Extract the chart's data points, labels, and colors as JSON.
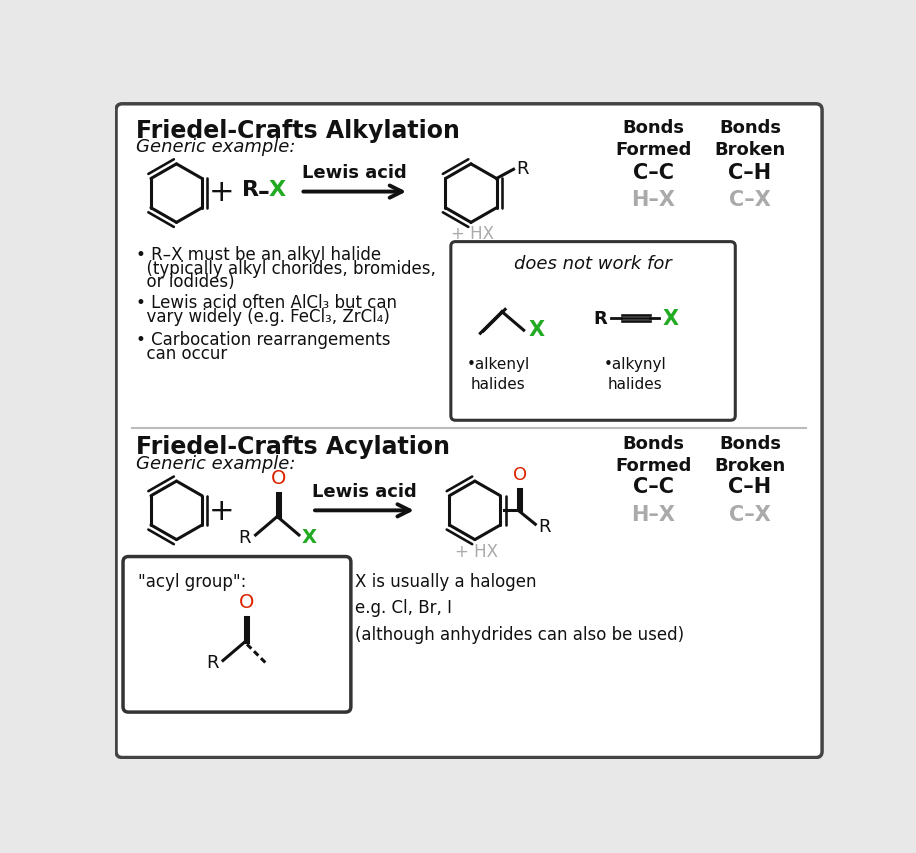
{
  "bg_color": "#e8e8e8",
  "panel_color": "#ffffff",
  "title_alkylation": "Friedel-Crafts Alkylation",
  "title_acylation": "Friedel-Crafts Acylation",
  "generic_example": "Generic example:",
  "lewis_acid": "Lewis acid",
  "bonds_formed": "Bonds\nFormed",
  "bonds_broken": "Bonds\nBroken",
  "cc_formed": "C–C",
  "ch_broken": "C–H",
  "hx_formed": "H–X",
  "cx_broken": "C–X",
  "plus_hx": "+ HX",
  "green": "#22aa22",
  "gray": "#aaaaaa",
  "black": "#111111",
  "red": "#dd2200",
  "does_not_work": "does not work for",
  "alkenyl": "•alkenyl\nhalides",
  "alkynyl": "•alkynyl\nhalides",
  "bullet1_a": "• R–X must be an alkyl halide",
  "bullet1_b": "  (typically alkyl chorides, bromides,",
  "bullet1_c": "  or iodides)",
  "bullet2_a": "• Lewis acid often AlCl₃ but can",
  "bullet2_b": "  vary widely (e.g. FeCl₃, ZrCl₄)",
  "bullet3_a": "• Carbocation rearrangements",
  "bullet3_b": "  can occur",
  "acyl_label": "\"acyl group\":",
  "acyl_note": "X is usually a halogen\ne.g. Cl, Br, I\n(although anhydrides can also be used)"
}
